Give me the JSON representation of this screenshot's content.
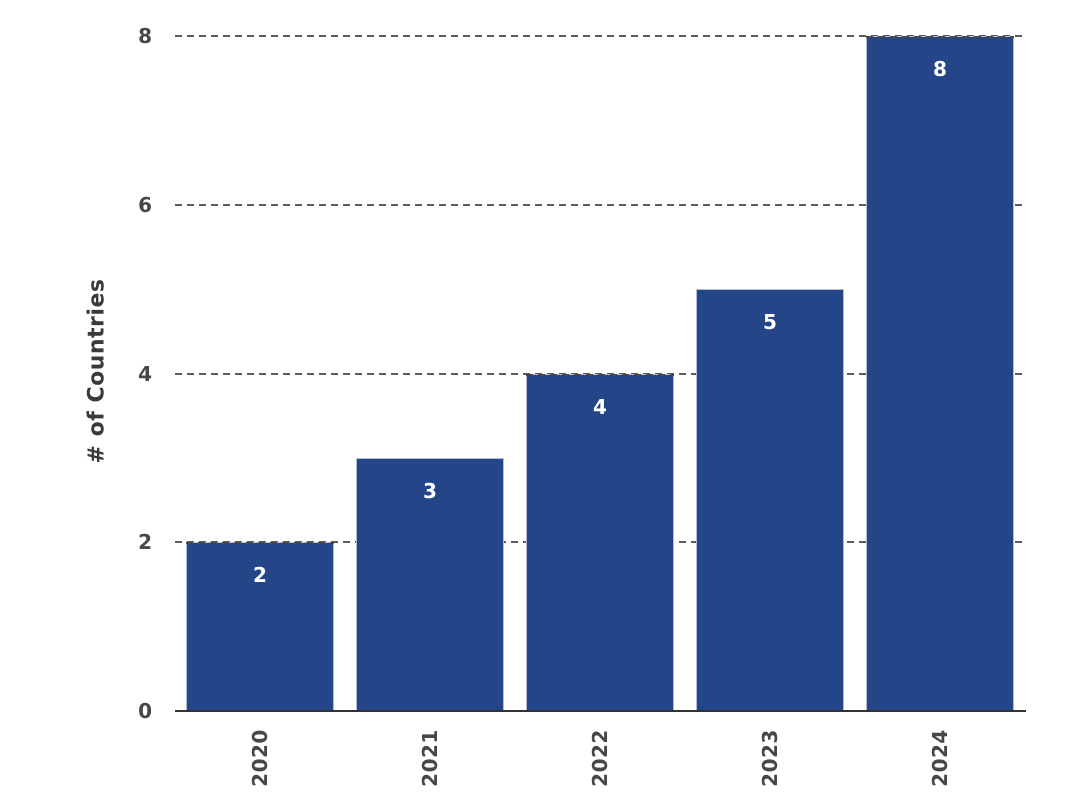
{
  "chart_data": {
    "type": "bar",
    "categories": [
      "2020",
      "2021",
      "2022",
      "2023",
      "2024"
    ],
    "values": [
      2,
      3,
      4,
      5,
      8
    ],
    "title": "",
    "xlabel": "",
    "ylabel": "# of Countries",
    "ylim": [
      0,
      8
    ],
    "yticks": [
      0,
      2,
      4,
      6,
      8
    ],
    "gridline_values": [
      2,
      4,
      6,
      8
    ],
    "grid": true,
    "gridline_style": "dashed",
    "legend": "none",
    "bar_color": "#254589",
    "bar_edge_color": "#aab6d8",
    "value_label_color": "#ffffff",
    "tick_label_color": "#474747",
    "axis_line_color": "#333333",
    "gridline_color": "#5c5c5c",
    "background_color": "#ffffff"
  }
}
